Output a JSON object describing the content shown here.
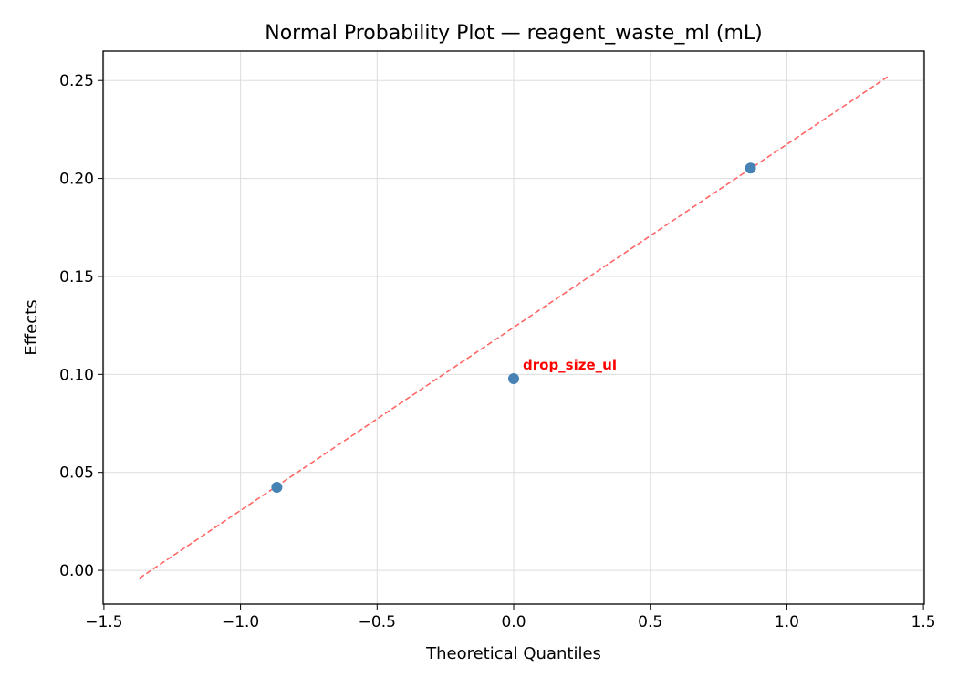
{
  "chart_data": {
    "type": "scatter",
    "title": "Normal Probability Plot — reagent_waste_ml (mL)",
    "xlabel": "Theoretical Quantiles",
    "ylabel": "Effects",
    "xlim": [
      -1.503,
      1.503
    ],
    "ylim": [
      -0.0172,
      0.265
    ],
    "grid": true,
    "x_ticks": [
      -1.5,
      -1.0,
      -0.5,
      0.0,
      0.5,
      1.0,
      1.5
    ],
    "x_tick_labels": [
      "−1.5",
      "−1.0",
      "−0.5",
      "0.0",
      "0.5",
      "1.0",
      "1.5"
    ],
    "y_ticks": [
      0.0,
      0.05,
      0.1,
      0.15,
      0.2,
      0.25
    ],
    "y_tick_labels": [
      "0.00",
      "0.05",
      "0.10",
      "0.15",
      "0.20",
      "0.25"
    ],
    "points": [
      {
        "x": -0.867,
        "y": 0.0424
      },
      {
        "x": 0.0,
        "y": 0.0978,
        "label": "drop_size_ul"
      },
      {
        "x": 0.867,
        "y": 0.2053
      }
    ],
    "reference_line": {
      "x": [
        -1.37,
        1.37
      ],
      "y": [
        -0.004,
        0.252
      ],
      "style": "dashed"
    },
    "colors": {
      "points": "#4682b4",
      "reference_line": "#ff6666",
      "annotation": "#ff0000"
    }
  }
}
